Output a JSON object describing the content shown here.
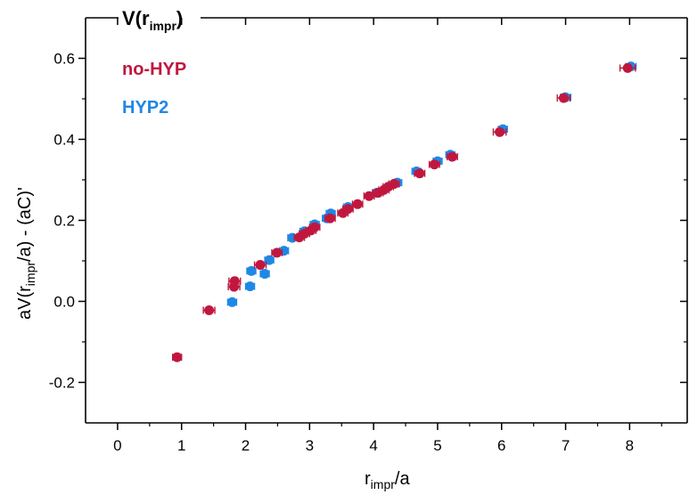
{
  "chart_data": {
    "type": "scatter",
    "title": "V(r",
    "title_sub": "impr",
    "title_close": ")",
    "xlabel": "r",
    "xlabel_sub": "impr",
    "xlabel_suffix": "/a",
    "ylabel": "aV(r",
    "ylabel_sub": "impr",
    "ylabel_suffix": "/a) - (aC)'",
    "xlim": [
      -0.5,
      8.9
    ],
    "ylim": [
      -0.3,
      0.7
    ],
    "xticks": [
      0,
      1,
      2,
      3,
      4,
      5,
      6,
      7,
      8
    ],
    "xtick_labels": [
      "0",
      "1",
      "2",
      "3",
      "4",
      "5",
      "6",
      "7",
      "8"
    ],
    "yticks": [
      -0.2,
      0.0,
      0.2,
      0.4,
      0.6
    ],
    "ytick_labels": [
      "-0.2",
      "0.0",
      "0.2",
      "0.4",
      "0.6"
    ],
    "grid": false,
    "legend_position": "top-left",
    "series": [
      {
        "name": "HYP2",
        "color": "#1e88e5",
        "points": [
          {
            "x": 1.79,
            "y": -0.002,
            "xerr": 0.06
          },
          {
            "x": 2.07,
            "y": 0.037,
            "xerr": 0.06
          },
          {
            "x": 2.09,
            "y": 0.075,
            "xerr": 0.06
          },
          {
            "x": 2.3,
            "y": 0.068,
            "xerr": 0.06
          },
          {
            "x": 2.37,
            "y": 0.102,
            "xerr": 0.06
          },
          {
            "x": 2.6,
            "y": 0.125,
            "xerr": 0.06
          },
          {
            "x": 2.73,
            "y": 0.157,
            "xerr": 0.06
          },
          {
            "x": 2.92,
            "y": 0.173,
            "xerr": 0.06
          },
          {
            "x": 3.08,
            "y": 0.19,
            "xerr": 0.06
          },
          {
            "x": 3.27,
            "y": 0.205,
            "xerr": 0.06
          },
          {
            "x": 3.33,
            "y": 0.217,
            "xerr": 0.06
          },
          {
            "x": 3.6,
            "y": 0.233,
            "xerr": 0.06
          },
          {
            "x": 4.05,
            "y": 0.268,
            "xerr": 0.06
          },
          {
            "x": 4.37,
            "y": 0.293,
            "xerr": 0.06
          },
          {
            "x": 4.67,
            "y": 0.321,
            "xerr": 0.06
          },
          {
            "x": 5.0,
            "y": 0.346,
            "xerr": 0.06
          },
          {
            "x": 5.2,
            "y": 0.362,
            "xerr": 0.06
          },
          {
            "x": 6.02,
            "y": 0.425,
            "xerr": 0.06
          },
          {
            "x": 7.0,
            "y": 0.504,
            "xerr": 0.08
          },
          {
            "x": 8.02,
            "y": 0.58,
            "xerr": 0.08
          }
        ]
      },
      {
        "name": "no-HYP",
        "color": "#c0173f",
        "points": [
          {
            "x": 0.93,
            "y": -0.138,
            "xerr": 0.06
          },
          {
            "x": 1.43,
            "y": -0.022,
            "xerr": 0.09
          },
          {
            "x": 1.82,
            "y": 0.036,
            "xerr": 0.09
          },
          {
            "x": 1.83,
            "y": 0.05,
            "xerr": 0.09
          },
          {
            "x": 2.23,
            "y": 0.09,
            "xerr": 0.09
          },
          {
            "x": 2.49,
            "y": 0.12,
            "xerr": 0.08
          },
          {
            "x": 2.84,
            "y": 0.158,
            "xerr": 0.08
          },
          {
            "x": 2.92,
            "y": 0.167,
            "xerr": 0.08
          },
          {
            "x": 3.02,
            "y": 0.175,
            "xerr": 0.08
          },
          {
            "x": 3.08,
            "y": 0.183,
            "xerr": 0.08
          },
          {
            "x": 3.32,
            "y": 0.205,
            "xerr": 0.08
          },
          {
            "x": 3.52,
            "y": 0.218,
            "xerr": 0.08
          },
          {
            "x": 3.6,
            "y": 0.228,
            "xerr": 0.08
          },
          {
            "x": 3.75,
            "y": 0.24,
            "xerr": 0.08
          },
          {
            "x": 3.93,
            "y": 0.26,
            "xerr": 0.08
          },
          {
            "x": 4.07,
            "y": 0.268,
            "xerr": 0.08
          },
          {
            "x": 4.16,
            "y": 0.275,
            "xerr": 0.08
          },
          {
            "x": 4.23,
            "y": 0.283,
            "xerr": 0.08
          },
          {
            "x": 4.32,
            "y": 0.29,
            "xerr": 0.08
          },
          {
            "x": 4.72,
            "y": 0.316,
            "xerr": 0.08
          },
          {
            "x": 4.95,
            "y": 0.338,
            "xerr": 0.08
          },
          {
            "x": 5.23,
            "y": 0.357,
            "xerr": 0.08
          },
          {
            "x": 5.97,
            "y": 0.418,
            "xerr": 0.1
          },
          {
            "x": 6.97,
            "y": 0.502,
            "xerr": 0.1
          },
          {
            "x": 7.97,
            "y": 0.576,
            "xerr": 0.12
          }
        ]
      }
    ]
  }
}
